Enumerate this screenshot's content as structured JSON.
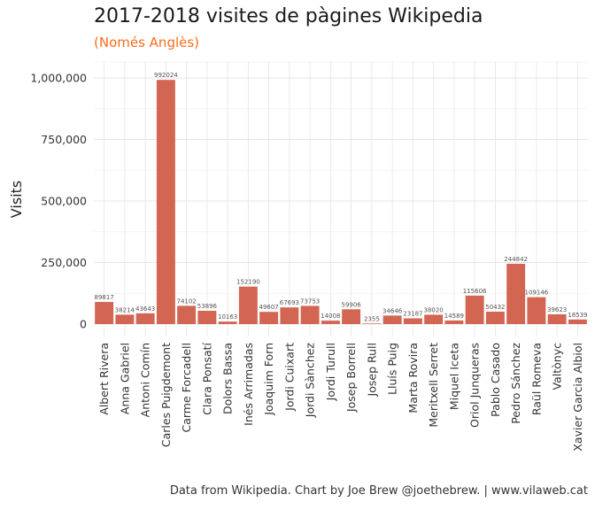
{
  "title": "2017-2018 visites de pàgines Wikipedia",
  "subtitle": "(Només Anglès)",
  "caption": "Data from Wikipedia. Chart by Joe Brew @joethebrew. | www.vilaweb.cat",
  "colors": {
    "bar": "#d26652",
    "grid": "#e5e5e5",
    "subtitle": "#ff6a1a"
  },
  "chart_data": {
    "type": "bar",
    "ylabel": "Visits",
    "xlabel": "",
    "ylim": [
      0,
      1000000
    ],
    "yticks": [
      0,
      250000,
      500000,
      750000,
      1000000
    ],
    "ytick_labels": [
      "0",
      "250,000",
      "500,000",
      "750,000",
      "1,000,000"
    ],
    "grid": true,
    "categories": [
      "Albert Rivera",
      "Anna Gabriel",
      "Antoni Comín",
      "Carles Puigdemont",
      "Carme Forcadell",
      "Clara Ponsatí",
      "Dolors Bassa",
      "Inés Arrimadas",
      "Joaquim Forn",
      "Jordi Cuixart",
      "Jordi Sànchez",
      "Jordi Turull",
      "Josep Borrell",
      "Josep Rull",
      "Lluís Puig",
      "Marta Rovira",
      "Meritxell Serret",
      "Miquel Iceta",
      "Oriol Junqueras",
      "Pablo Casado",
      "Pedro Sánchez",
      "Raül Romeva",
      "Valtònyc",
      "Xavier Garcia Albiol"
    ],
    "values": [
      89817,
      38214,
      43643,
      992024,
      74102,
      53896,
      10163,
      152190,
      49607,
      67693,
      73753,
      14008,
      59906,
      2355,
      34646,
      23187,
      38020,
      14589,
      115606,
      50432,
      244842,
      109146,
      39623,
      18539
    ]
  }
}
